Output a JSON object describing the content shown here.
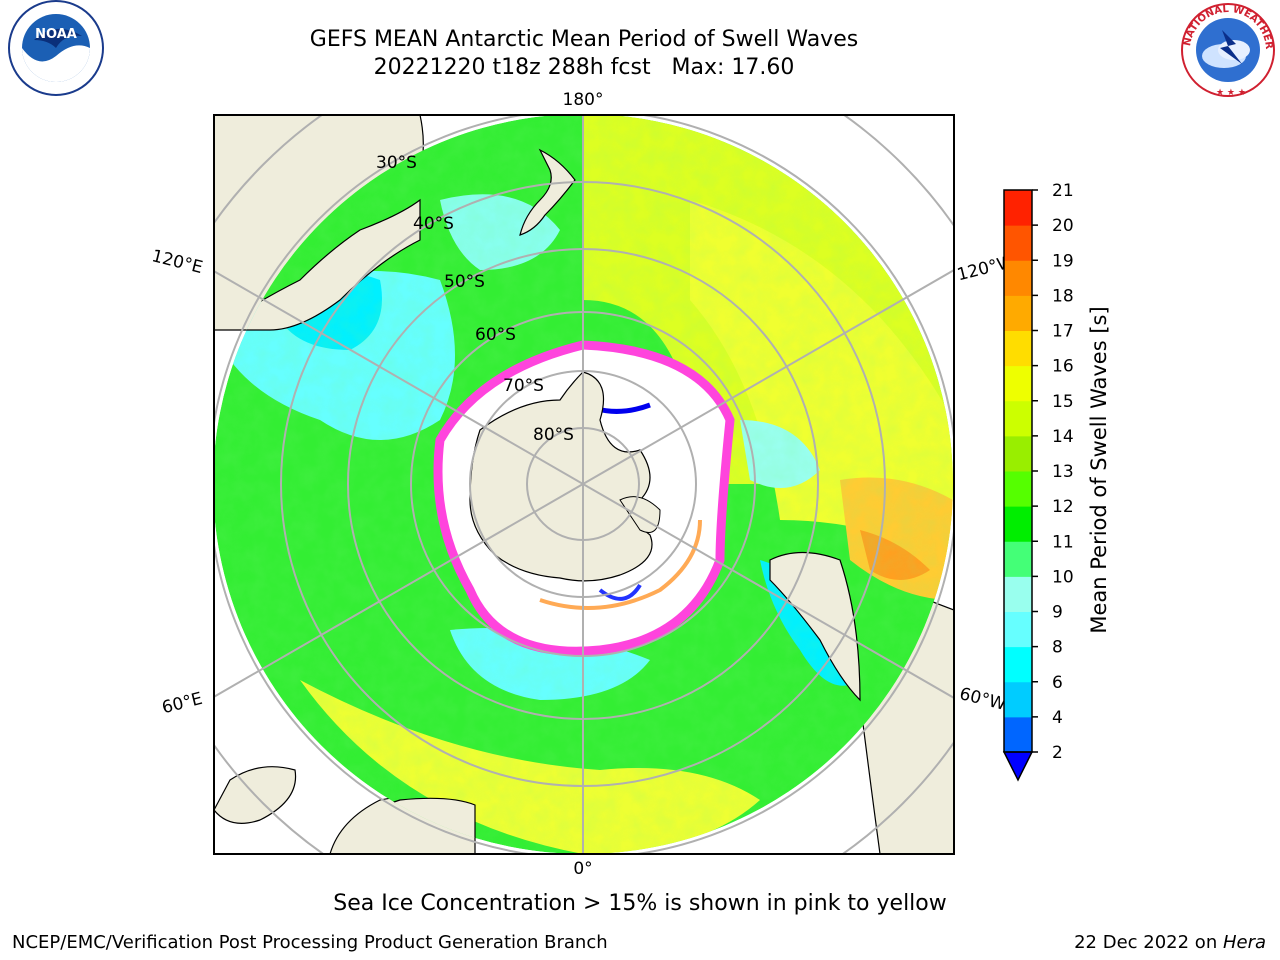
{
  "header": {
    "title_line1": "GEFS MEAN Antarctic Mean Period of Swell Waves",
    "title_line2": "20221220 t18z 288h fcst   Max: 17.60"
  },
  "logos": {
    "noaa": {
      "name": "noaa-logo",
      "text": "NOAA"
    },
    "nws": {
      "name": "nws-logo",
      "text": "NATIONAL WEATHER SERVICE"
    }
  },
  "map": {
    "projection": "south-polar-stereographic",
    "longitude_labels": {
      "top": "180°",
      "bottom": "0°",
      "upper_left": "120°E",
      "upper_right": "120°W",
      "lower_left": "60°E",
      "lower_right": "60°W"
    },
    "latitude_labels": [
      "30°S",
      "40°S",
      "50°S",
      "60°S",
      "70°S",
      "80°S"
    ],
    "colors": {
      "land": "#efeddc",
      "grid": "#b0b0b0",
      "sea_ice": "#ff44dd",
      "ice_interior": "#ffffff"
    }
  },
  "colorbar": {
    "label": "Mean Period of Swell Waves [s]",
    "ticks": [
      "2",
      "4",
      "6",
      "8",
      "9",
      "10",
      "11",
      "12",
      "13",
      "14",
      "15",
      "16",
      "17",
      "18",
      "19",
      "20",
      "21"
    ],
    "colors": [
      "#0000ff",
      "#0066ff",
      "#00ccff",
      "#00ffff",
      "#66ffff",
      "#99ffee",
      "#44ff77",
      "#00ee00",
      "#55ff00",
      "#99ee00",
      "#ccff00",
      "#eeff00",
      "#ffdd00",
      "#ffaa00",
      "#ff8800",
      "#ff5500",
      "#ff2200",
      "#ff0000"
    ],
    "extend": "min"
  },
  "caption": "Sea Ice Concentration > 15% is shown in pink to yellow",
  "footer": {
    "left": "NCEP/EMC/Verification Post Processing Product Generation Branch",
    "right_date": "22 Dec 2022 on ",
    "right_host": "Hera"
  }
}
